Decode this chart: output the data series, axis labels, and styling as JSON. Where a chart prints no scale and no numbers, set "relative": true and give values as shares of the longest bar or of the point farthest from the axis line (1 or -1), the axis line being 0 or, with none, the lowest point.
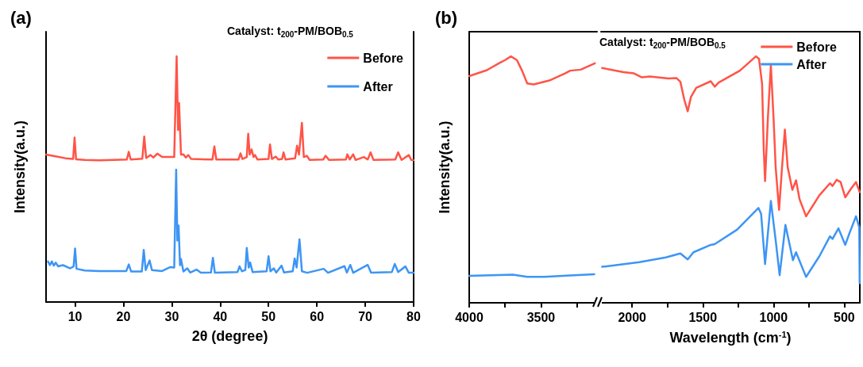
{
  "chart_data": [
    {
      "type": "line",
      "title": "(a)",
      "xlabel": "2θ (degree)",
      "ylabel": "Intensity(a.u.)",
      "annotations": [
        "Catalyst: t$_{200}$-PM/BOB$_{0.5}$"
      ],
      "relative": true,
      "xlim": [
        4,
        80
      ],
      "xticks": [
        10,
        20,
        30,
        40,
        50,
        60,
        70,
        80
      ],
      "legend": "top right",
      "marker": "none",
      "grid": false,
      "series": [
        {
          "name": "Before",
          "color": "#ff5447",
          "x": [
            4,
            6,
            8,
            9.6,
            9.9,
            10.2,
            12,
            15,
            18,
            20.7,
            21.1,
            21.5,
            23.9,
            24.3,
            24.7,
            25.6,
            26.2,
            27.0,
            28,
            30.5,
            31.0,
            31.3,
            31.5,
            31.9,
            32.4,
            32.9,
            33.4,
            34,
            38.4,
            38.8,
            39.2,
            43.8,
            44.2,
            44.6,
            45.5,
            45.8,
            46.1,
            46.5,
            46.9,
            47.2,
            47.7,
            50.0,
            50.3,
            50.7,
            51.5,
            52,
            52.8,
            53.1,
            53.5,
            55.5,
            55.9,
            56.3,
            56.9,
            57.3,
            57.9,
            58.5,
            61.3,
            61.8,
            62.5,
            66.0,
            66.3,
            66.8,
            67.5,
            68,
            69.7,
            70.5,
            71.1,
            71.7,
            76.2,
            76.8,
            77.5,
            79.0,
            79.5,
            80
          ],
          "values": [
            0.6,
            0.593,
            0.585,
            0.582,
            0.669,
            0.581,
            0.578,
            0.577,
            0.578,
            0.58,
            0.611,
            0.58,
            0.583,
            0.673,
            0.586,
            0.598,
            0.588,
            0.604,
            0.59,
            0.59,
            1.0,
            0.7,
            0.81,
            0.6,
            0.601,
            0.588,
            0.598,
            0.582,
            0.58,
            0.633,
            0.58,
            0.58,
            0.605,
            0.582,
            0.59,
            0.685,
            0.6,
            0.621,
            0.59,
            0.598,
            0.58,
            0.582,
            0.641,
            0.582,
            0.592,
            0.58,
            0.582,
            0.609,
            0.58,
            0.585,
            0.636,
            0.6,
            0.729,
            0.59,
            0.595,
            0.578,
            0.58,
            0.595,
            0.578,
            0.58,
            0.601,
            0.58,
            0.601,
            0.578,
            0.59,
            0.58,
            0.609,
            0.578,
            0.58,
            0.609,
            0.578,
            0.598,
            0.578,
            0.577
          ]
        },
        {
          "name": "After",
          "color": "#3d95f5",
          "x": [
            4.4,
            4.8,
            5.2,
            5.6,
            6.0,
            6.5,
            7.5,
            9.0,
            9.7,
            10.0,
            10.3,
            12,
            15,
            18,
            20.6,
            21.1,
            21.6,
            23.8,
            24.2,
            24.6,
            25.4,
            25.9,
            28,
            29.7,
            30.5,
            30.9,
            31.15,
            31.4,
            31.7,
            31.9,
            32.4,
            33.2,
            33.8,
            35.1,
            36,
            38.1,
            38.5,
            38.9,
            43.6,
            44.0,
            44.5,
            45.2,
            45.5,
            45.9,
            46.2,
            46.7,
            49.6,
            50.0,
            50.4,
            51.1,
            51.6,
            52.7,
            53.2,
            55.0,
            55.4,
            55.8,
            56.4,
            56.9,
            58,
            61.4,
            62.3,
            65.7,
            66.2,
            66.9,
            67.5,
            70.5,
            71.2,
            75.5,
            76.1,
            76.8,
            78.3,
            79,
            80
          ],
          "values": [
            0.165,
            0.15,
            0.165,
            0.148,
            0.16,
            0.145,
            0.15,
            0.137,
            0.145,
            0.218,
            0.135,
            0.128,
            0.126,
            0.126,
            0.126,
            0.153,
            0.124,
            0.124,
            0.212,
            0.13,
            0.169,
            0.13,
            0.126,
            0.142,
            0.14,
            0.539,
            0.25,
            0.311,
            0.15,
            0.175,
            0.124,
            0.137,
            0.12,
            0.132,
            0.119,
            0.12,
            0.18,
            0.119,
            0.122,
            0.145,
            0.125,
            0.13,
            0.22,
            0.14,
            0.161,
            0.122,
            0.125,
            0.186,
            0.125,
            0.137,
            0.12,
            0.148,
            0.12,
            0.125,
            0.177,
            0.14,
            0.255,
            0.125,
            0.119,
            0.135,
            0.119,
            0.146,
            0.12,
            0.151,
            0.119,
            0.151,
            0.119,
            0.122,
            0.155,
            0.122,
            0.145,
            0.119,
            0.119
          ]
        }
      ]
    },
    {
      "type": "line",
      "title": "(b)",
      "ylabel": "Intensity(a.u.)",
      "relative": true,
      "xlim": [
        4000,
        3110
      ],
      "xticks": [
        4000,
        {
          "value": 3750,
          "label": null
        },
        3500,
        {
          "value": 3250,
          "label": null
        }
      ],
      "marker": "none",
      "grid": false,
      "series": [
        {
          "color": "#ff5447",
          "x": [
            4000,
            3877,
            3786,
            3750,
            3710,
            3668,
            3632,
            3596,
            3551,
            3442,
            3333,
            3297,
            3224,
            3125
          ],
          "values": [
            0.92,
            0.944,
            0.974,
            0.985,
            1.0,
            0.985,
            0.942,
            0.89,
            0.886,
            0.902,
            0.931,
            0.942,
            0.946,
            0.972
          ]
        },
        {
          "color": "#3d95f5",
          "x": [
            4000,
            3696,
            3596,
            3478,
            3297,
            3129
          ],
          "values": [
            0.109,
            0.114,
            0.105,
            0.105,
            0.111,
            0.116
          ]
        }
      ]
    },
    {
      "type": "line",
      "xlabel": "Wavelength (cm$^{-1}$)",
      "annotations": [
        "Catalyst: t$_{200}$-PM/BOB$_{0.5}$"
      ],
      "relative": true,
      "xlim": [
        2220,
        390
      ],
      "xticks": [
        2000,
        {
          "value": 1750,
          "label": null
        },
        1500,
        {
          "value": 1250,
          "label": null
        },
        1000,
        {
          "value": 750,
          "label": null
        },
        500
      ],
      "legend": "top right",
      "marker": "none",
      "grid": false,
      "series": [
        {
          "name": "Before",
          "color": "#ff5447",
          "x": [
            2212,
            2062,
            1987,
            1931,
            1875,
            1743,
            1687,
            1659,
            1631,
            1607,
            1584,
            1547,
            1444,
            1416,
            1388,
            1238,
            1125,
            1103,
            1081,
            1069,
            1060,
            1040,
            1019,
            1000,
            985,
            961,
            940,
            920,
            900,
            867,
            841,
            816,
            770,
            676,
            601,
            583,
            554,
            526,
            493,
            451,
            417,
            391
          ],
          "values": [
            0.953,
            0.936,
            0.931,
            0.915,
            0.918,
            0.91,
            0.912,
            0.897,
            0.824,
            0.777,
            0.835,
            0.872,
            0.899,
            0.877,
            0.894,
            0.942,
            1.0,
            0.99,
            0.888,
            0.619,
            0.494,
            0.75,
            0.965,
            0.75,
            0.55,
            0.377,
            0.55,
            0.703,
            0.55,
            0.458,
            0.497,
            0.42,
            0.351,
            0.436,
            0.485,
            0.474,
            0.499,
            0.49,
            0.428,
            0.464,
            0.49,
            0.449
          ]
        },
        {
          "name": "After",
          "color": "#3d95f5",
          "x": [
            2212,
            1949,
            1762,
            1659,
            1607,
            1566,
            1444,
            1416,
            1257,
            1107,
            1088,
            1060,
            1019,
            985,
            957,
            916,
            863,
            841,
            770,
            676,
            601,
            583,
            541,
            493,
            461,
            417,
            394,
            391
          ],
          "values": [
            0.146,
            0.165,
            0.184,
            0.2,
            0.176,
            0.205,
            0.235,
            0.238,
            0.297,
            0.385,
            0.361,
            0.157,
            0.413,
            0.254,
            0.112,
            0.316,
            0.173,
            0.205,
            0.105,
            0.189,
            0.27,
            0.259,
            0.302,
            0.235,
            0.286,
            0.351,
            0.307,
            0.08
          ]
        }
      ]
    }
  ]
}
